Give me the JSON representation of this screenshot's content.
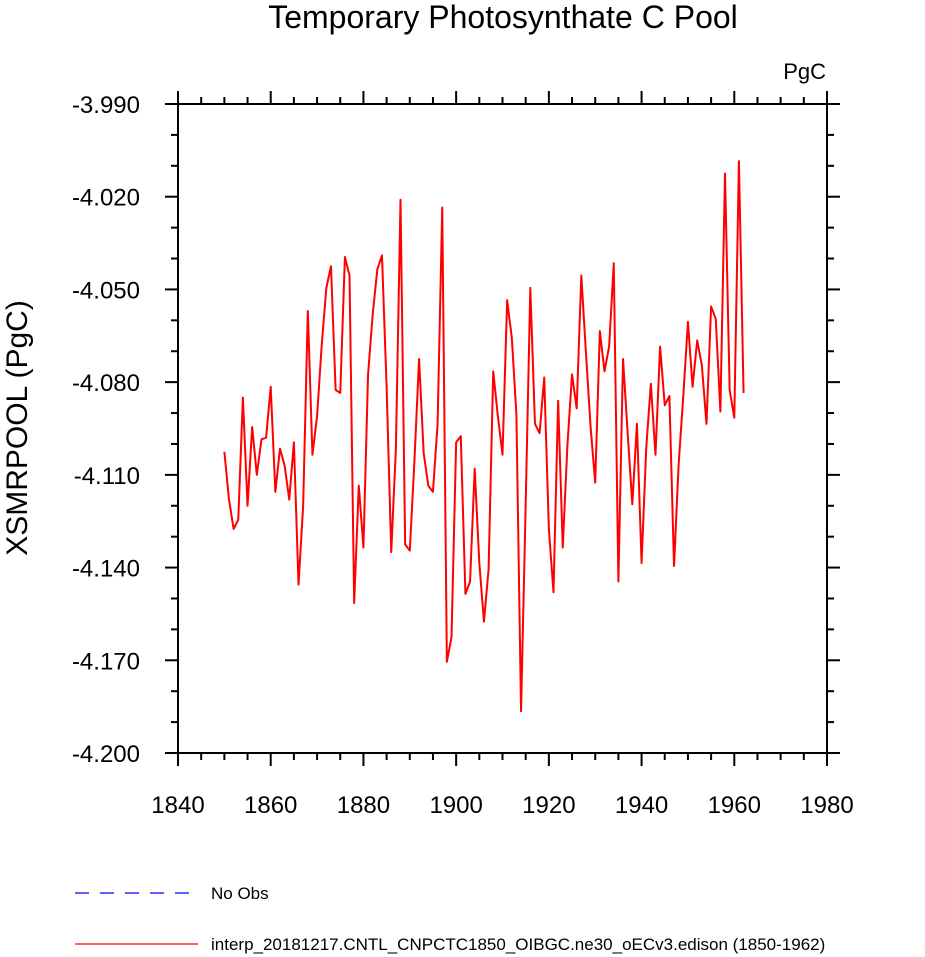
{
  "chart_data": {
    "type": "line",
    "title": "Temporary Photosynthate C Pool",
    "units_label": "PgC",
    "xlabel": "",
    "ylabel": "XSMRPOOL  (PgC)",
    "xlim": [
      1840,
      1980
    ],
    "ylim": [
      -4.2,
      -3.99
    ],
    "x_ticks": [
      1840,
      1860,
      1880,
      1900,
      1920,
      1940,
      1960,
      1980
    ],
    "x_tick_labels": [
      "1840",
      "1860",
      "1880",
      "1900",
      "1920",
      "1940",
      "1960",
      "1980"
    ],
    "y_ticks": [
      -3.99,
      -4.02,
      -4.05,
      -4.08,
      -4.11,
      -4.14,
      -4.17,
      -4.2
    ],
    "y_tick_labels": [
      "-3.990",
      "-4.020",
      "-4.050",
      "-4.080",
      "-4.110",
      "-4.140",
      "-4.170",
      "-4.200"
    ],
    "series": [
      {
        "name": "interp_20181217.CNTL_CNPCTC1850_OIBGC.ne30_oECv3.edison (1850-1962)",
        "color": "#ff0000",
        "style": "solid",
        "x": [
          1850,
          1851,
          1852,
          1853,
          1854,
          1855,
          1856,
          1857,
          1858,
          1859,
          1860,
          1861,
          1862,
          1863,
          1864,
          1865,
          1866,
          1867,
          1868,
          1869,
          1870,
          1871,
          1872,
          1873,
          1874,
          1875,
          1876,
          1877,
          1878,
          1879,
          1880,
          1881,
          1882,
          1883,
          1884,
          1885,
          1886,
          1887,
          1888,
          1889,
          1890,
          1891,
          1892,
          1893,
          1894,
          1895,
          1896,
          1897,
          1898,
          1899,
          1900,
          1901,
          1902,
          1903,
          1904,
          1905,
          1906,
          1907,
          1908,
          1909,
          1910,
          1911,
          1912,
          1913,
          1914,
          1915,
          1916,
          1917,
          1918,
          1919,
          1920,
          1921,
          1922,
          1923,
          1924,
          1925,
          1926,
          1927,
          1928,
          1929,
          1930,
          1931,
          1932,
          1933,
          1934,
          1935,
          1936,
          1937,
          1938,
          1939,
          1940,
          1941,
          1942,
          1943,
          1944,
          1945,
          1946,
          1947,
          1948,
          1949,
          1950,
          1951,
          1952,
          1953,
          1954,
          1955,
          1956,
          1957,
          1958,
          1959,
          1960,
          1961,
          1962
        ],
        "values": [
          -4.1025,
          -4.118,
          -4.1275,
          -4.1245,
          -4.085,
          -4.12,
          -4.0945,
          -4.11,
          -4.0985,
          -4.098,
          -4.0815,
          -4.1155,
          -4.1015,
          -4.107,
          -4.118,
          -4.0995,
          -4.1455,
          -4.12,
          -4.057,
          -4.1035,
          -4.091,
          -4.068,
          -4.0495,
          -4.0425,
          -4.0825,
          -4.0835,
          -4.0395,
          -4.0455,
          -4.1515,
          -4.1135,
          -4.1335,
          -4.0775,
          -4.058,
          -4.0435,
          -4.039,
          -4.0815,
          -4.135,
          -4.1015,
          -4.021,
          -4.1325,
          -4.1345,
          -4.1055,
          -4.0725,
          -4.103,
          -4.1135,
          -4.1155,
          -4.0935,
          -4.0235,
          -4.1705,
          -4.1625,
          -4.0995,
          -4.0975,
          -4.1485,
          -4.1445,
          -4.108,
          -4.1385,
          -4.1575,
          -4.1405,
          -4.0765,
          -4.091,
          -4.1035,
          -4.0535,
          -4.0655,
          -4.0905,
          -4.1865,
          -4.1195,
          -4.0495,
          -4.0935,
          -4.0965,
          -4.0785,
          -4.1275,
          -4.148,
          -4.086,
          -4.1335,
          -4.1005,
          -4.0775,
          -4.0885,
          -4.0455,
          -4.0705,
          -4.0945,
          -4.1125,
          -4.0635,
          -4.0765,
          -4.0685,
          -4.0415,
          -4.1445,
          -4.0725,
          -4.0965,
          -4.1195,
          -4.0935,
          -4.1385,
          -4.1015,
          -4.0805,
          -4.1035,
          -4.0685,
          -4.0875,
          -4.0845,
          -4.1395,
          -4.1065,
          -4.0845,
          -4.0605,
          -4.0815,
          -4.0665,
          -4.0745,
          -4.0935,
          -4.0555,
          -4.0595,
          -4.0895,
          -4.0125,
          -4.0825,
          -4.0915,
          -4.0085,
          -4.0835
        ]
      },
      {
        "name": "No Obs",
        "color": "#0000ff",
        "style": "dashed",
        "x": [],
        "values": []
      }
    ],
    "legend": [
      {
        "label": "No Obs",
        "color": "#0000ff",
        "style": "dashed"
      },
      {
        "label": "interp_20181217.CNTL_CNPCTC1850_OIBGC.ne30_oECv3.edison (1850-1962)",
        "color": "#ff0000",
        "style": "solid"
      }
    ],
    "legend_position": "bottom-left",
    "grid": false
  }
}
